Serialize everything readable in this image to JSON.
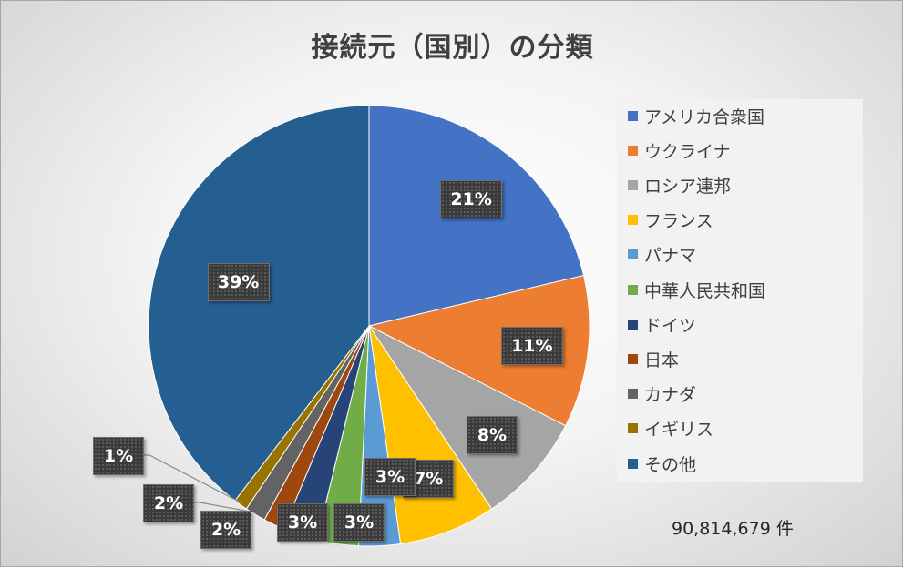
{
  "chart_data": {
    "type": "pie",
    "title": "接続元（国別）の分類",
    "categories": [
      "アメリカ合衆国",
      "ウクライナ",
      "ロシア連邦",
      "フランス",
      "パナマ",
      "中華人民共和国",
      "ドイツ",
      "日本",
      "カナダ",
      "イギリス",
      "その他"
    ],
    "values": [
      21,
      11,
      8,
      7,
      3,
      3,
      2.5,
      1.5,
      1.5,
      1,
      39
    ],
    "value_labels": [
      "21%",
      "11%",
      "8%",
      "7%",
      "3%",
      "3%",
      "3%",
      "2%",
      "2%",
      "1%",
      "39%"
    ],
    "colors": [
      "#4472c4",
      "#ed7d31",
      "#a5a5a5",
      "#ffc000",
      "#5b9bd5",
      "#70ad47",
      "#264478",
      "#9e480e",
      "#636363",
      "#997300",
      "#255e91"
    ],
    "legend_position": "right",
    "start_angle": "12 o'clock",
    "direction": "clockwise",
    "total_label": "90,814,679 件"
  }
}
